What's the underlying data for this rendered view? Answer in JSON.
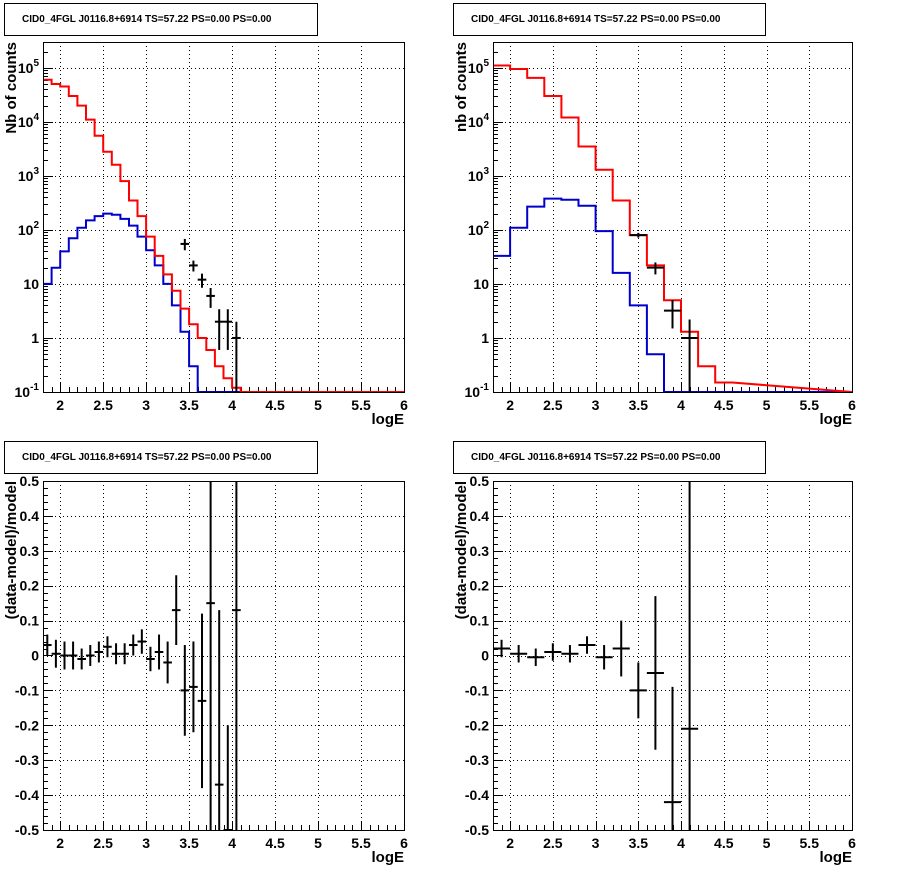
{
  "colors": {
    "data": "#000000",
    "total_model": "#ff0000",
    "source_model": "#0000cc",
    "frame": "#000000",
    "grid": "#000000"
  },
  "chart_data": [
    {
      "type": "line",
      "title": "CID0_4FGL J0116.8+6914 TS=57.22 PS=0.00 PS=0.00",
      "xlabel": "logE",
      "ylabel": "Nb of counts",
      "xlim": [
        1.8,
        6.0
      ],
      "ylim": [
        0.1,
        300000
      ],
      "yscale": "log",
      "grid": true,
      "x_ticks": [
        "2",
        "2.5",
        "3",
        "3.5",
        "4",
        "4.5",
        "5",
        "5.5",
        "6"
      ],
      "y_ticks": [
        "10^-1",
        "1",
        "10",
        "10^2",
        "10^3",
        "10^4",
        "10^5"
      ],
      "bin_width": 0.1,
      "bins_start": [
        1.8,
        1.9,
        2.0,
        2.1,
        2.2,
        2.3,
        2.4,
        2.5,
        2.6,
        2.7,
        2.8,
        2.9,
        3.0,
        3.1,
        3.2,
        3.3,
        3.4,
        3.5,
        3.6,
        3.7,
        3.8,
        3.9,
        4.0,
        4.1,
        4.2,
        4.3,
        4.4,
        4.5
      ],
      "series": [
        {
          "role": "total_model",
          "values": [
            60000,
            50000,
            45000,
            30000,
            20000,
            11000,
            5500,
            2800,
            1600,
            800,
            350,
            180,
            75,
            33,
            15,
            7.5,
            3.5,
            1.8,
            1,
            0.6,
            0.3,
            0.18,
            0.12,
            0.1,
            0.1,
            0.1,
            0.1,
            0.1
          ]
        },
        {
          "role": "source_model",
          "values": [
            10,
            20,
            40,
            70,
            110,
            150,
            180,
            200,
            190,
            160,
            120,
            75,
            42,
            22,
            10,
            4,
            1.3,
            0.3,
            0.1,
            0.1,
            0.1,
            0.1,
            0.1,
            0.1,
            0.1,
            0.1,
            0.1,
            0.1
          ]
        },
        {
          "role": "data",
          "points": [
            {
              "x": 3.45,
              "y": 55,
              "lo": 42,
              "hi": 68
            },
            {
              "x": 3.55,
              "y": 22,
              "lo": 17,
              "hi": 27
            },
            {
              "x": 3.65,
              "y": 12,
              "lo": 8.5,
              "hi": 15.5
            },
            {
              "x": 3.75,
              "y": 6,
              "lo": 3.6,
              "hi": 8.4
            },
            {
              "x": 3.85,
              "y": 2,
              "lo": 0.6,
              "hi": 3.4
            },
            {
              "x": 3.95,
              "y": 2,
              "lo": 0.6,
              "hi": 3.4
            },
            {
              "x": 4.05,
              "y": 1,
              "lo": 0.1,
              "hi": 2.0
            }
          ]
        }
      ]
    },
    {
      "type": "line",
      "title": "CID0_4FGL J0116.8+6914 TS=57.22 PS=0.00 PS=0.00",
      "xlabel": "logE",
      "ylabel": "nb of counts",
      "xlim": [
        1.8,
        6.0
      ],
      "ylim": [
        0.1,
        300000
      ],
      "yscale": "log",
      "grid": true,
      "x_ticks": [
        "2",
        "2.5",
        "3",
        "3.5",
        "4",
        "4.5",
        "5",
        "5.5",
        "6"
      ],
      "y_ticks": [
        "10^-1",
        "1",
        "10",
        "10^2",
        "10^3",
        "10^4",
        "10^5"
      ],
      "bin_width": 0.2,
      "bins_start": [
        1.8,
        2.0,
        2.2,
        2.4,
        2.6,
        2.8,
        3.0,
        3.2,
        3.4,
        3.6,
        3.8,
        4.0,
        4.2,
        4.4
      ],
      "series": [
        {
          "role": "total_model",
          "values": [
            110000,
            95000,
            65000,
            30000,
            12000,
            3500,
            1300,
            350,
            80,
            22,
            5,
            1.3,
            0.3,
            0.15
          ]
        },
        {
          "role": "source_model",
          "values": [
            33,
            110,
            270,
            380,
            360,
            280,
            95,
            16,
            4,
            0.5,
            0.1,
            0.1,
            0.1,
            0.1
          ]
        },
        {
          "role": "data",
          "points": [
            {
              "x": 3.5,
              "y": 80,
              "lo": 72,
              "hi": 88
            },
            {
              "x": 3.7,
              "y": 20,
              "lo": 15,
              "hi": 25
            },
            {
              "x": 3.9,
              "y": 3.2,
              "lo": 1.5,
              "hi": 5
            },
            {
              "x": 4.1,
              "y": 1,
              "lo": 0.1,
              "hi": 2.2
            }
          ]
        }
      ]
    },
    {
      "type": "scatter",
      "title": "CID0_4FGL J0116.8+6914 TS=57.22 PS=0.00 PS=0.00",
      "xlabel": "logE",
      "ylabel": "(data-model)/model",
      "xlim": [
        1.8,
        6.0
      ],
      "ylim": [
        -0.5,
        0.5
      ],
      "grid": true,
      "x_ticks": [
        "2",
        "2.5",
        "3",
        "3.5",
        "4",
        "4.5",
        "5",
        "5.5",
        "6"
      ],
      "y_ticks": [
        "-0.5",
        "-0.4",
        "-0.3",
        "-0.2",
        "-0.1",
        "0",
        "0.1",
        "0.2",
        "0.3",
        "0.4",
        "0.5"
      ],
      "points": [
        {
          "x": 1.85,
          "y": 0.03,
          "err": 0.03
        },
        {
          "x": 1.95,
          "y": 0.005,
          "err": 0.04
        },
        {
          "x": 2.05,
          "y": 0.0,
          "err": 0.04
        },
        {
          "x": 2.15,
          "y": 0.0,
          "err": 0.04
        },
        {
          "x": 2.25,
          "y": -0.01,
          "err": 0.03
        },
        {
          "x": 2.35,
          "y": 0.0,
          "err": 0.03
        },
        {
          "x": 2.45,
          "y": 0.01,
          "err": 0.03
        },
        {
          "x": 2.55,
          "y": 0.025,
          "err": 0.03
        },
        {
          "x": 2.65,
          "y": 0.005,
          "err": 0.03
        },
        {
          "x": 2.75,
          "y": 0.005,
          "err": 0.03
        },
        {
          "x": 2.85,
          "y": 0.03,
          "err": 0.03
        },
        {
          "x": 2.95,
          "y": 0.04,
          "err": 0.035
        },
        {
          "x": 3.05,
          "y": -0.01,
          "err": 0.035
        },
        {
          "x": 3.15,
          "y": 0.01,
          "err": 0.05
        },
        {
          "x": 3.25,
          "y": -0.02,
          "err": 0.06
        },
        {
          "x": 3.35,
          "y": 0.13,
          "err": 0.1
        },
        {
          "x": 3.45,
          "y": -0.1,
          "err": 0.13
        },
        {
          "x": 3.55,
          "y": -0.09,
          "err": 0.13
        },
        {
          "x": 3.65,
          "y": -0.13,
          "err": 0.25
        },
        {
          "x": 3.75,
          "y": 0.15,
          "err": 0.65
        },
        {
          "x": 3.85,
          "y": -0.37,
          "err": 0.5
        },
        {
          "x": 3.95,
          "y": -0.5,
          "err": 0.3
        },
        {
          "x": 4.05,
          "y": 0.13,
          "err": 0.65
        }
      ]
    },
    {
      "type": "scatter",
      "title": "CID0_4FGL J0116.8+6914 TS=57.22 PS=0.00 PS=0.00",
      "xlabel": "logE",
      "ylabel": "(data-model)/model",
      "xlim": [
        1.8,
        6.0
      ],
      "ylim": [
        -0.5,
        0.5
      ],
      "grid": true,
      "x_ticks": [
        "2",
        "2.5",
        "3",
        "3.5",
        "4",
        "4.5",
        "5",
        "5.5",
        "6"
      ],
      "y_ticks": [
        "-0.5",
        "-0.4",
        "-0.3",
        "-0.2",
        "-0.1",
        "0",
        "0.1",
        "0.2",
        "0.3",
        "0.4",
        "0.5"
      ],
      "points": [
        {
          "x": 1.9,
          "y": 0.02,
          "err": 0.025
        },
        {
          "x": 2.1,
          "y": 0.005,
          "err": 0.025
        },
        {
          "x": 2.3,
          "y": -0.005,
          "err": 0.025
        },
        {
          "x": 2.5,
          "y": 0.01,
          "err": 0.025
        },
        {
          "x": 2.7,
          "y": 0.005,
          "err": 0.025
        },
        {
          "x": 2.9,
          "y": 0.03,
          "err": 0.025
        },
        {
          "x": 3.1,
          "y": -0.005,
          "err": 0.035
        },
        {
          "x": 3.3,
          "y": 0.02,
          "err": 0.08
        },
        {
          "x": 3.5,
          "y": -0.1,
          "err": 0.08
        },
        {
          "x": 3.7,
          "y": -0.05,
          "err": 0.22
        },
        {
          "x": 3.9,
          "y": -0.42,
          "err": 0.33
        },
        {
          "x": 4.1,
          "y": -0.21,
          "err": 0.8
        }
      ]
    }
  ]
}
